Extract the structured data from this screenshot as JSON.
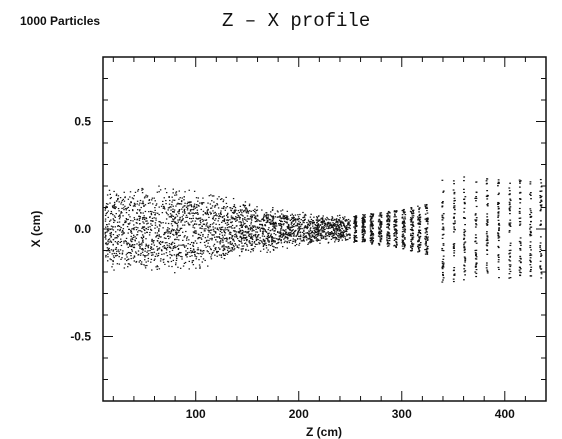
{
  "header": {
    "particles_label": "1000 Particles",
    "title": "Z  – X  profile"
  },
  "chart_data": {
    "type": "scatter",
    "title": "Z  – X  profile",
    "annotation": "1000 Particles",
    "xlabel": "Z (cm)",
    "ylabel": "X (cm)",
    "xlim": [
      10,
      440
    ],
    "ylim": [
      -0.8,
      0.8
    ],
    "x_ticks": [
      100,
      200,
      300,
      400
    ],
    "y_ticks": [
      0.5,
      0.0,
      -0.5
    ],
    "y_tick_labels": [
      "0.5",
      "0.0",
      "-0.5"
    ],
    "grid": false,
    "envelope": [
      {
        "z": 12,
        "x_min": -0.2,
        "x_max": 0.2
      },
      {
        "z": 50,
        "x_min": -0.21,
        "x_max": 0.21
      },
      {
        "z": 90,
        "x_min": -0.21,
        "x_max": 0.21
      },
      {
        "z": 150,
        "x_min": -0.13,
        "x_max": 0.13
      },
      {
        "z": 200,
        "x_min": -0.08,
        "x_max": 0.08
      },
      {
        "z": 250,
        "x_min": -0.06,
        "x_max": 0.06
      },
      {
        "z": 300,
        "x_min": -0.09,
        "x_max": 0.09
      },
      {
        "z": 325,
        "x_min": -0.12,
        "x_max": 0.12
      },
      {
        "z": 340,
        "x_min": -0.25,
        "x_max": 0.25
      },
      {
        "z": 400,
        "x_min": -0.23,
        "x_max": 0.23
      },
      {
        "z": 435,
        "x_min": -0.23,
        "x_max": 0.23
      }
    ],
    "bunch_positions_z": [
      255,
      263,
      271,
      279,
      287,
      294,
      302,
      310,
      317,
      324,
      340,
      351,
      361,
      372,
      383,
      394,
      405,
      415,
      425,
      435
    ]
  },
  "colors": {
    "ink": "#111111",
    "background": "#ffffff"
  }
}
